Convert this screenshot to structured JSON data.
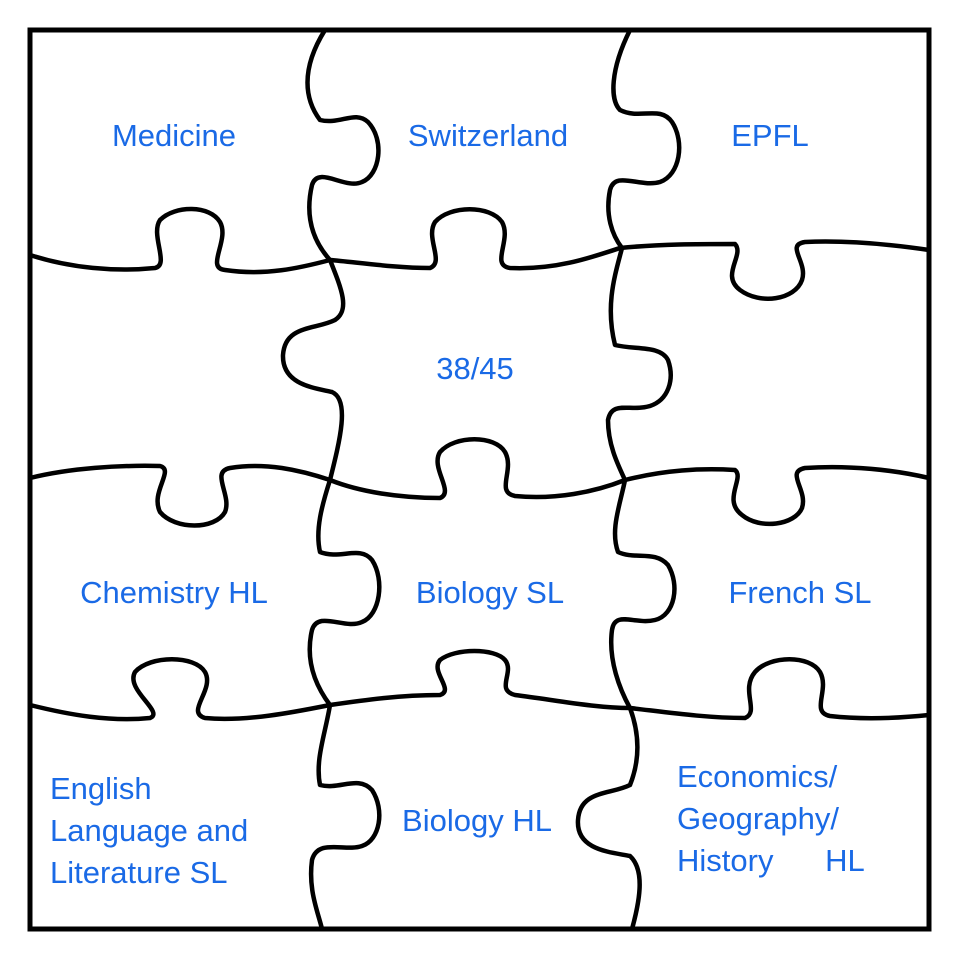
{
  "pieces": {
    "medicine": "Medicine",
    "switzerland": "Switzerland",
    "epfl": "EPFL",
    "score": "38/45",
    "chemistry_hl": "Chemistry HL",
    "biology_sl": "Biology SL",
    "french_sl": "French SL",
    "english": "English\nLanguage and\nLiterature SL",
    "biology_hl": "Biology HL",
    "econ": "Economics/\nGeography/\nHistory      HL"
  },
  "colors": {
    "label": "#1a6ae6",
    "outline": "#000000",
    "background": "#ffffff"
  }
}
